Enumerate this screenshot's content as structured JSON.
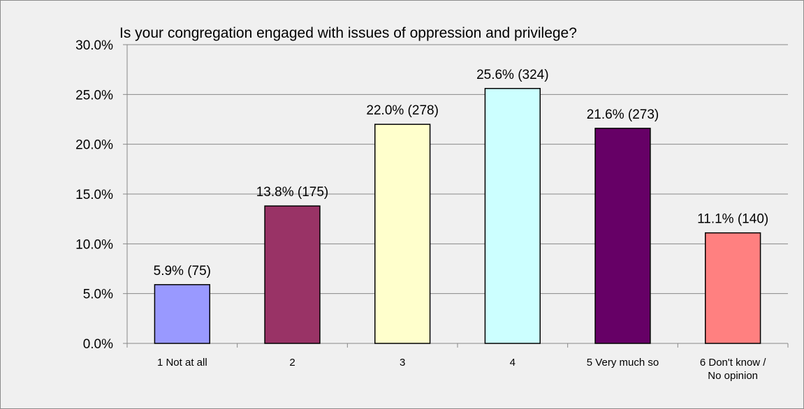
{
  "chart_data": {
    "type": "bar",
    "title": "Is your congregation engaged with issues of oppression and privilege?",
    "xlabel": "",
    "ylabel": "",
    "ylim": [
      0,
      30
    ],
    "yticks": [
      "0.0%",
      "5.0%",
      "10.0%",
      "15.0%",
      "20.0%",
      "25.0%",
      "30.0%"
    ],
    "categories": [
      [
        "1 Not at all"
      ],
      [
        "2"
      ],
      [
        "3"
      ],
      [
        "4"
      ],
      [
        "5 Very much so"
      ],
      [
        "6 Don't know /",
        "No opinion"
      ]
    ],
    "values": [
      5.9,
      13.8,
      22.0,
      25.6,
      21.6,
      11.1
    ],
    "data_labels": [
      "5.9% (75)",
      "13.8% (175)",
      "22.0% (278)",
      "25.6% (324)",
      "21.6% (273)",
      "11.1% (140)"
    ],
    "colors": [
      "#9999ff",
      "#993366",
      "#ffffcc",
      "#ccffff",
      "#660066",
      "#ff8080"
    ],
    "grid": true,
    "legend": "none"
  }
}
